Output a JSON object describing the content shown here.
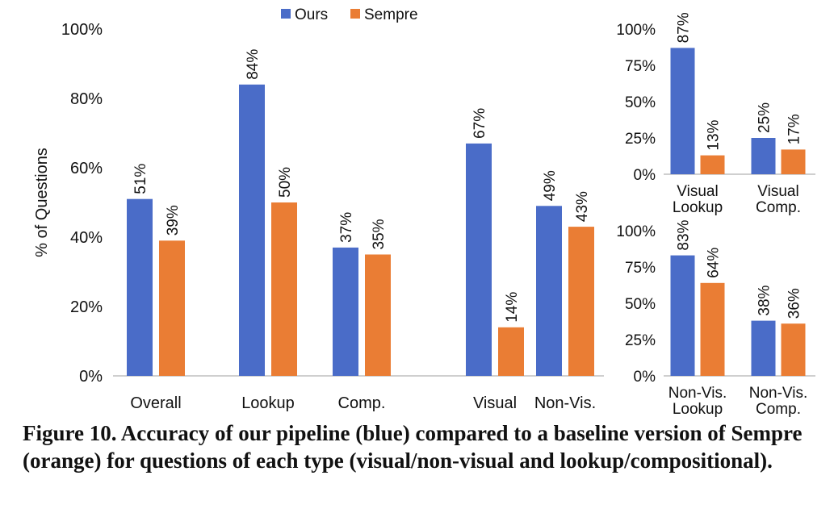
{
  "legend": [
    "Ours",
    "Sempre"
  ],
  "colors": {
    "ours": "#4a6cc8",
    "sempre": "#ea7d34"
  },
  "caption": "Figure 10.  Accuracy of our pipeline (blue) compared to a baseline version of Sempre (orange) for questions of each type (visual/non-visual and lookup/compositional).",
  "chart_data": [
    {
      "type": "bar",
      "ylabel": "% of Questions",
      "ylim": [
        0,
        100
      ],
      "yticks": [
        "0%",
        "20%",
        "40%",
        "60%",
        "80%",
        "100%"
      ],
      "categories": [
        "Overall",
        "Lookup",
        "Comp.",
        "Visual",
        "Non-Vis."
      ],
      "series": [
        {
          "name": "Ours",
          "values": [
            51,
            84,
            37,
            67,
            49
          ],
          "labels": [
            "51%",
            "84%",
            "37%",
            "67%",
            "49%"
          ]
        },
        {
          "name": "Sempre",
          "values": [
            39,
            50,
            35,
            14,
            43
          ],
          "labels": [
            "39%",
            "50%",
            "35%",
            "14%",
            "43%"
          ]
        }
      ],
      "legend_position": "top"
    },
    {
      "type": "bar",
      "ylim": [
        0,
        100
      ],
      "yticks": [
        "0%",
        "25%",
        "50%",
        "75%",
        "100%"
      ],
      "categories": [
        [
          "Visual",
          "Lookup"
        ],
        [
          "Visual",
          "Comp."
        ]
      ],
      "series": [
        {
          "name": "Ours",
          "values": [
            87,
            25
          ],
          "labels": [
            "87%",
            "25%"
          ]
        },
        {
          "name": "Sempre",
          "values": [
            13,
            17
          ],
          "labels": [
            "13%",
            "17%"
          ]
        }
      ]
    },
    {
      "type": "bar",
      "ylim": [
        0,
        100
      ],
      "yticks": [
        "0%",
        "25%",
        "50%",
        "75%",
        "100%"
      ],
      "categories": [
        [
          "Non-Vis.",
          "Lookup"
        ],
        [
          "Non-Vis.",
          "Comp."
        ]
      ],
      "series": [
        {
          "name": "Ours",
          "values": [
            83,
            38
          ],
          "labels": [
            "83%",
            "38%"
          ]
        },
        {
          "name": "Sempre",
          "values": [
            64,
            36
          ],
          "labels": [
            "64%",
            "36%"
          ]
        }
      ]
    }
  ]
}
